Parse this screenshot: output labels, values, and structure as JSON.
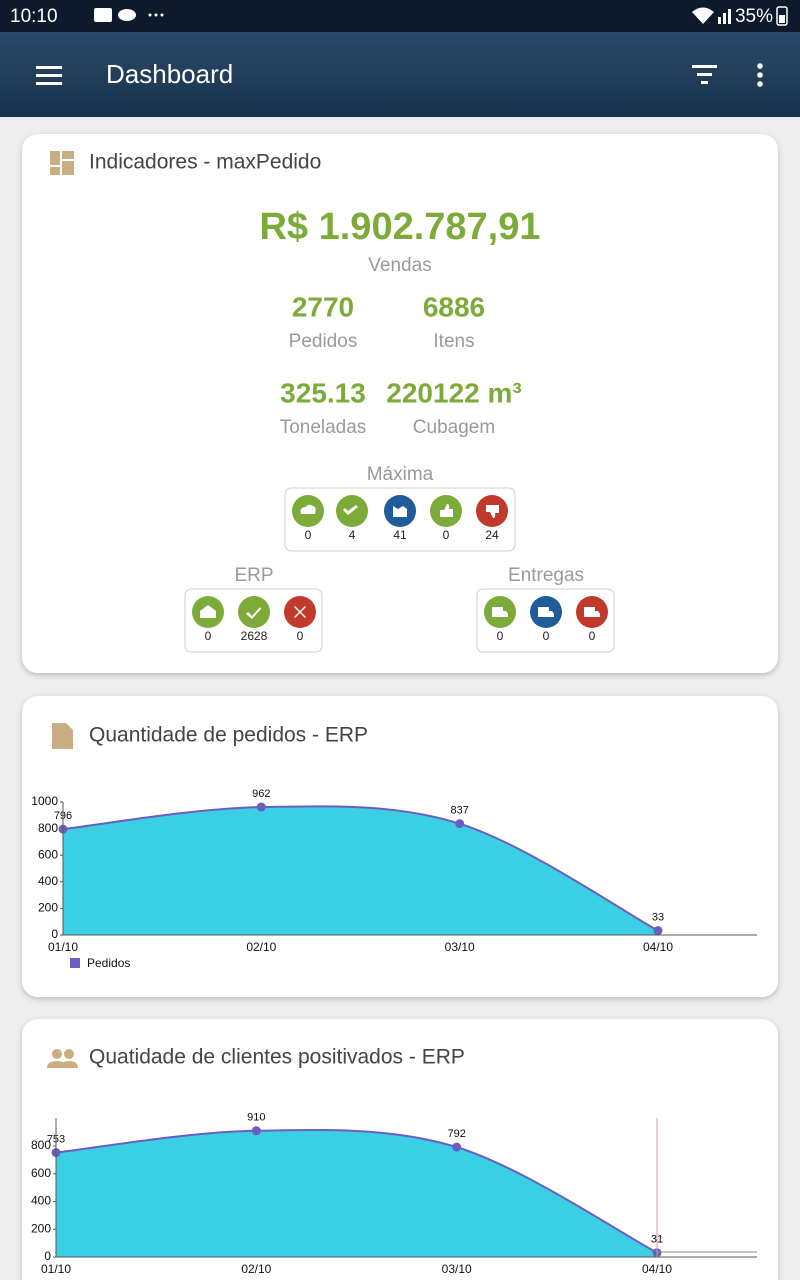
{
  "status_bar": {
    "time": "10:10",
    "battery": "35%"
  },
  "app_bar": {
    "title": "Dashboard"
  },
  "indicators": {
    "title": "Indicadores - maxPedido",
    "sales": {
      "value": "R$ 1.902.787,91",
      "label": "Vendas"
    },
    "stats": [
      {
        "value": 2770,
        "label": "Pedidos"
      },
      {
        "value": 6886,
        "label": "Itens"
      },
      {
        "value": 325.13,
        "label": "Toneladas"
      },
      {
        "value": "220122 m³",
        "label": "Cubagem"
      }
    ],
    "groups": [
      {
        "title": "Máxima",
        "items": [
          {
            "count": 0,
            "color": "#7cab3a"
          },
          {
            "count": 4,
            "color": "#7cab3a"
          },
          {
            "count": 41,
            "color": "#1f5c99"
          },
          {
            "count": 0,
            "color": "#7cab3a"
          },
          {
            "count": 24,
            "color": "#c0392b"
          }
        ]
      },
      {
        "title": "ERP",
        "items": [
          {
            "count": 0,
            "color": "#7cab3a"
          },
          {
            "count": 2628,
            "color": "#7cab3a"
          },
          {
            "count": 0,
            "color": "#c0392b"
          }
        ]
      },
      {
        "title": "Entregas",
        "items": [
          {
            "count": 0,
            "color": "#7cab3a"
          },
          {
            "count": 0,
            "color": "#1f5c99"
          },
          {
            "count": 0,
            "color": "#c0392b"
          }
        ]
      }
    ]
  },
  "chart_data": [
    {
      "type": "area",
      "title": "Quantidade de pedidos - ERP",
      "categories": [
        "01/10",
        "02/10",
        "03/10",
        "04/10"
      ],
      "series": [
        {
          "name": "Pedidos",
          "color": "#3bcfe3",
          "line_color": "#6a5fc1",
          "values": [
            796,
            962,
            837,
            33
          ]
        }
      ],
      "ylim": [
        0,
        1000
      ],
      "yticks": [
        0,
        200,
        400,
        600,
        800,
        1000
      ],
      "legend": "bottom-left"
    },
    {
      "type": "area",
      "title": "Quatidade de clientes positivados - ERP",
      "categories": [
        "01/10",
        "02/10",
        "03/10",
        "04/10"
      ],
      "series": [
        {
          "color": "#3bcfe3",
          "line_color": "#6a5fc1",
          "values": [
            753,
            910,
            792,
            31
          ]
        }
      ],
      "ylim": [
        0,
        1000
      ],
      "yticks": [
        0,
        200,
        400,
        600,
        800
      ]
    }
  ]
}
